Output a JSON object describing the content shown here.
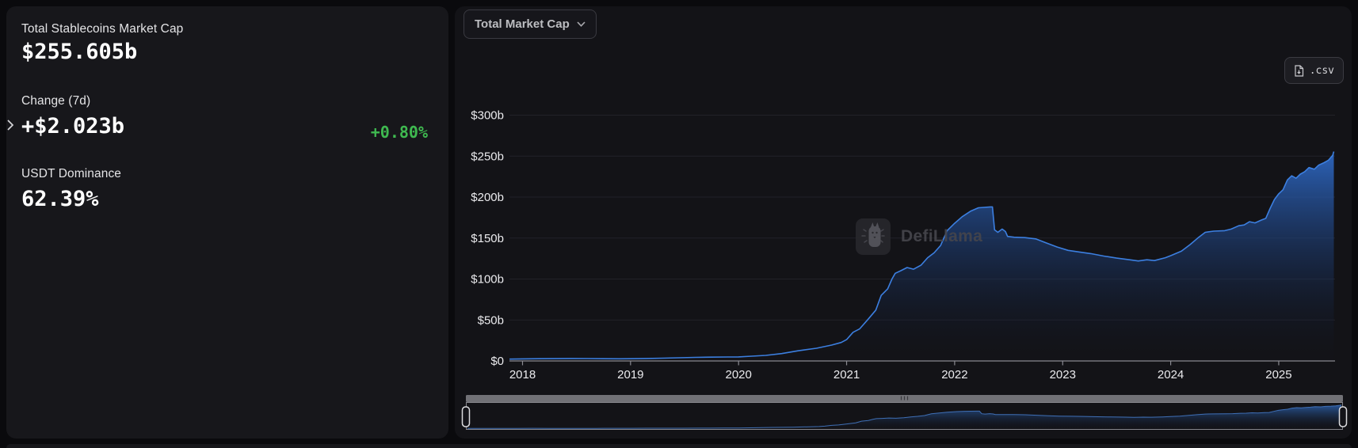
{
  "left_panel": {
    "market_cap_label": "Total Stablecoins Market Cap",
    "market_cap_value": "$255.605b",
    "change_label": "Change (7d)",
    "change_value": "+$2.023b",
    "change_pct": "+0.80%",
    "dominance_label": "USDT Dominance",
    "dominance_value": "62.39%"
  },
  "toolbar": {
    "dropdown_label": "Total Market Cap",
    "csv_label": ".csv"
  },
  "watermark": {
    "text": "DefiLlama"
  },
  "icons": {
    "dropdown_chevron": "chevron-down",
    "csv_icon": "file-download",
    "left_toggle": "chevron-right",
    "watermark_icon": "defillama-llama-logo",
    "scrollbar_grip": "drag-grip"
  },
  "colors": {
    "page_bg": "#0a0a0d",
    "card_bg_left": "#17171b",
    "card_bg_right": "#131317",
    "positive_green": "#3fb950",
    "line_blue": "#3c7fe0",
    "area_top": "#2f6bc9",
    "grid": "#222228",
    "axis": "#8b8b92",
    "tick_text": "#ebebee",
    "scrollbar_gray": "#717176",
    "handle_stroke": "#dcdcdf"
  },
  "chart_data": {
    "type": "area",
    "title": "Total Market Cap",
    "series_name": "Total Stablecoins Market Cap",
    "x_unit": "decimal year",
    "y_unit": "USD billions",
    "ylim": [
      0,
      300
    ],
    "grid": true,
    "legend_position": "none",
    "x_ticks": [
      "2018",
      "2019",
      "2020",
      "2021",
      "2022",
      "2023",
      "2024",
      "2025"
    ],
    "y_ticks": [
      0,
      50,
      100,
      150,
      200,
      250,
      300
    ],
    "y_tick_labels": [
      "$0",
      "$50b",
      "$100b",
      "$150b",
      "$200b",
      "$250b",
      "$300b"
    ],
    "x": [
      2017.88,
      2018.0,
      2018.15,
      2018.3,
      2018.45,
      2018.6,
      2018.75,
      2018.9,
      2019.0,
      2019.15,
      2019.3,
      2019.45,
      2019.6,
      2019.75,
      2019.9,
      2020.0,
      2020.12,
      2020.25,
      2020.4,
      2020.55,
      2020.72,
      2020.86,
      2020.95,
      2021.0,
      2021.06,
      2021.12,
      2021.2,
      2021.27,
      2021.32,
      2021.38,
      2021.42,
      2021.45,
      2021.5,
      2021.56,
      2021.62,
      2021.69,
      2021.75,
      2021.81,
      2021.87,
      2021.93,
      2022.0,
      2022.07,
      2022.15,
      2022.22,
      2022.33,
      2022.35,
      2022.37,
      2022.4,
      2022.44,
      2022.47,
      2022.49,
      2022.55,
      2022.65,
      2022.75,
      2022.85,
      2022.95,
      2023.05,
      2023.15,
      2023.26,
      2023.38,
      2023.5,
      2023.62,
      2023.7,
      2023.78,
      2023.85,
      2023.95,
      2024.0,
      2024.1,
      2024.18,
      2024.25,
      2024.32,
      2024.4,
      2024.5,
      2024.56,
      2024.63,
      2024.68,
      2024.73,
      2024.78,
      2024.84,
      2024.88,
      2024.92,
      2024.96,
      2025.0,
      2025.04,
      2025.08,
      2025.12,
      2025.16,
      2025.2,
      2025.24,
      2025.28,
      2025.33,
      2025.37,
      2025.42,
      2025.46,
      2025.5,
      2025.51
    ],
    "values": [
      2.2,
      2.5,
      2.7,
      2.85,
      3.0,
      2.9,
      2.75,
      2.6,
      2.7,
      3.0,
      3.4,
      3.9,
      4.3,
      4.6,
      4.8,
      4.9,
      5.8,
      6.8,
      9.0,
      12.4,
      15.5,
      19.3,
      22.5,
      26,
      35,
      39,
      51,
      62,
      80,
      88,
      100,
      107,
      110,
      114,
      112,
      117,
      126,
      132,
      141,
      159,
      168,
      176,
      183,
      187,
      188,
      188,
      160,
      157,
      161,
      158,
      152,
      151,
      150.5,
      149,
      144,
      139,
      135,
      133,
      131,
      128,
      125.5,
      123.5,
      122,
      123.5,
      122.5,
      126,
      128.5,
      134,
      142,
      150,
      157,
      158.5,
      159,
      161,
      165,
      166,
      170,
      168.5,
      172,
      174,
      186,
      197,
      204,
      209,
      221,
      226,
      223,
      228,
      231,
      236,
      234,
      239,
      242,
      245,
      251,
      255.6
    ]
  },
  "brush": {
    "description": "timeline range selector showing full series, fully selected",
    "range_start": "2018",
    "range_end": "2025"
  }
}
